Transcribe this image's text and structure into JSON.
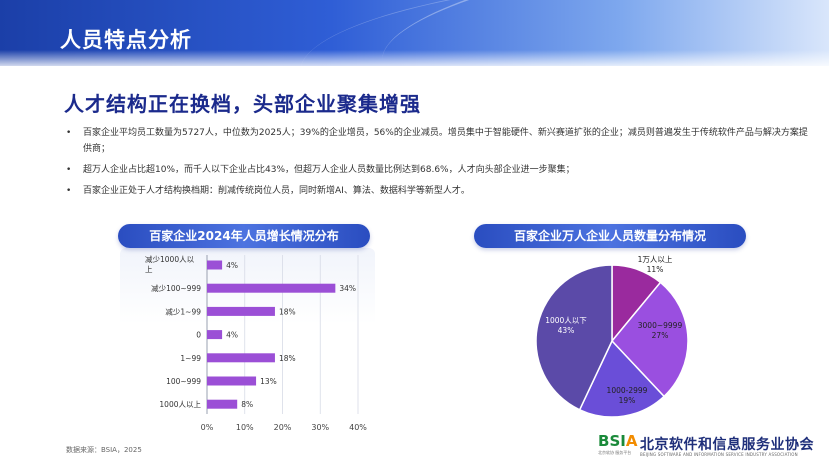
{
  "header": {
    "title": "人员特点分析"
  },
  "headline": "人才结构正在换档，头部企业聚集增强",
  "bullets": [
    "百家企业平均员工数量为5727人，中位数为2025人；39%的企业增员，56%的企业减员。增员集中于智能硬件、新兴赛道扩张的企业；减员则普遍发生于传统软件产品与解决方案提供商；",
    "超万人企业占比超10%，而千人以下企业占比43%，但超万人企业人员数量比例达到68.6%，人才向头部企业进一步聚集；",
    "百家企业正处于人才结构换档期：削减传统岗位人员，同时新增AI、算法、数据科学等新型人才。"
  ],
  "chart_titles": {
    "left": "百家企业2024年人员增长情况分布",
    "right": "百家企业万人企业人员数量分布情况"
  },
  "footer": {
    "source": "数据来源：BSIA，2025"
  },
  "logo": {
    "mark_b": "B",
    "mark_s": "S",
    "mark_i": "I",
    "mark_a": "A",
    "mark_sub": "北京软协 服务平台",
    "name_cn": "北京软件和信息服务业协会",
    "name_en": "BEIJING SOFTWARE AND INFORMATION SERVICE INDUSTRY ASSOCIATION"
  },
  "colors": {
    "bar": "#9b4fd6",
    "pie": [
      "#9a2a9e",
      "#9a4fe0",
      "#6a4ed8",
      "#5b4aa8"
    ],
    "pill": "#2a4dc0",
    "headline": "#1b2a8c"
  },
  "chart_data": [
    {
      "type": "bar",
      "orientation": "horizontal",
      "categories": [
        "减少1000人以上",
        "减少100~999",
        "减少1~99",
        "0",
        "1~99",
        "100~999",
        "1000人以上"
      ],
      "category_lines": [
        [
          "减少1000人以",
          "上"
        ],
        [
          "减少100~999"
        ],
        [
          "减少1~99"
        ],
        [
          "0"
        ],
        [
          "1~99"
        ],
        [
          "100~999"
        ],
        [
          "1000人以上"
        ]
      ],
      "values": [
        4,
        34,
        18,
        4,
        18,
        13,
        8
      ],
      "value_labels": [
        "4%",
        "34%",
        "18%",
        "4%",
        "18%",
        "13%",
        "8%"
      ],
      "xlim": [
        0,
        40
      ],
      "xticks": [
        "0%",
        "10%",
        "20%",
        "30%",
        "40%"
      ],
      "grid": true
    },
    {
      "type": "pie",
      "slices": [
        {
          "label": "1万人以上",
          "value": 11,
          "pct_label": "11%"
        },
        {
          "label": "3000~9999",
          "value": 27,
          "pct_label": "27%"
        },
        {
          "label": "1000-2999",
          "value": 19,
          "pct_label": "19%"
        },
        {
          "label": "1000人以下",
          "value": 43,
          "pct_label": "43%"
        }
      ]
    }
  ]
}
